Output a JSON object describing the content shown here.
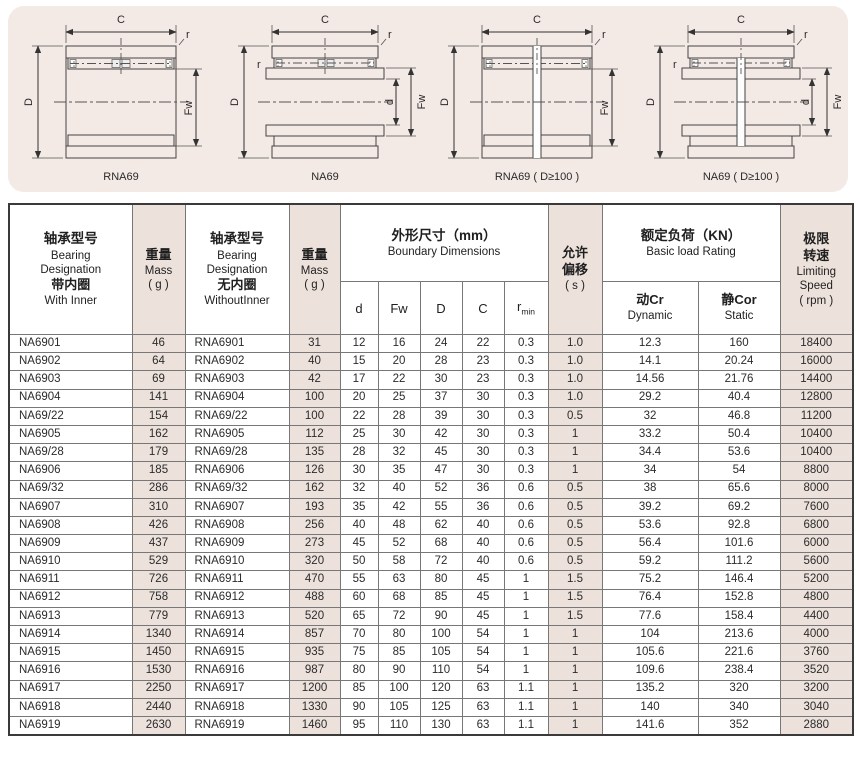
{
  "colors": {
    "panel_bg": "#f3e9e5",
    "column_shade": "#ece1db",
    "grid_line": "#777777",
    "outer_border": "#3a3a3a",
    "text": "#1f1f1f"
  },
  "dims": {
    "c": "C",
    "outer": "D",
    "bore": "d",
    "roller_bore": "Fw",
    "chamfer": "r"
  },
  "diagrams": [
    {
      "caption": "RNA69"
    },
    {
      "caption": "NA69"
    },
    {
      "caption": "RNA69 ( D≥100 )"
    },
    {
      "caption": "NA69 ( D≥100 )"
    }
  ],
  "table": {
    "header": {
      "with_inner": {
        "zh1": "轴承型号",
        "en1": "Bearing",
        "en2": "Designation",
        "zh2": "带内圈",
        "en3": "With Inner"
      },
      "mass1": {
        "zh": "重量",
        "en": "Mass",
        "unit": "( g )"
      },
      "without_inner": {
        "zh1": "轴承型号",
        "en1": "Bearing",
        "en2": "Designation",
        "zh2": "无内圈",
        "en3": "WithoutInner"
      },
      "mass2": {
        "zh": "重量",
        "en": "Mass",
        "unit": "( g )"
      },
      "boundary_group": {
        "zh": "外形尺寸（mm）",
        "en": "Boundary Dimensions"
      },
      "sub_d": "d",
      "sub_fw": "Fw",
      "sub_D": "D",
      "sub_C": "C",
      "sub_r": "r",
      "sub_r_min": "min",
      "offset": {
        "zh1": "允许",
        "zh2": "偏移",
        "unit": "( s )"
      },
      "load_group": {
        "zh": "额定负荷（KN）",
        "en": "Basic load Rating"
      },
      "sub_cr": {
        "zh": "动Cr",
        "en": "Dynamic"
      },
      "sub_cor": {
        "zh": "静Cor",
        "en": "Static"
      },
      "speed": {
        "zh1": "极限",
        "zh2": "转速",
        "en1": "Limiting",
        "en2": "Speed",
        "unit": "( rpm )"
      }
    },
    "columns": [
      "na",
      "mass-na",
      "rna",
      "mass-rna",
      "d",
      "fw",
      "D",
      "C",
      "rmin",
      "s",
      "cr",
      "cor",
      "speed"
    ],
    "shaded_columns": [
      1,
      3,
      9,
      12
    ],
    "rows": [
      [
        "NA6901",
        "46",
        "RNA6901",
        "31",
        "12",
        "16",
        "24",
        "22",
        "0.3",
        "1.0",
        "12.3",
        "160",
        "18400"
      ],
      [
        "NA6902",
        "64",
        "RNA6902",
        "40",
        "15",
        "20",
        "28",
        "23",
        "0.3",
        "1.0",
        "14.1",
        "20.24",
        "16000"
      ],
      [
        "NA6903",
        "69",
        "RNA6903",
        "42",
        "17",
        "22",
        "30",
        "23",
        "0.3",
        "1.0",
        "14.56",
        "21.76",
        "14400"
      ],
      [
        "NA6904",
        "141",
        "RNA6904",
        "100",
        "20",
        "25",
        "37",
        "30",
        "0.3",
        "1.0",
        "29.2",
        "40.4",
        "12800"
      ],
      [
        "NA69/22",
        "154",
        "RNA69/22",
        "100",
        "22",
        "28",
        "39",
        "30",
        "0.3",
        "0.5",
        "32",
        "46.8",
        "11200"
      ],
      [
        "NA6905",
        "162",
        "RNA6905",
        "112",
        "25",
        "30",
        "42",
        "30",
        "0.3",
        "1",
        "33.2",
        "50.4",
        "10400"
      ],
      [
        "NA69/28",
        "179",
        "RNA69/28",
        "135",
        "28",
        "32",
        "45",
        "30",
        "0.3",
        "1",
        "34.4",
        "53.6",
        "10400"
      ],
      [
        "NA6906",
        "185",
        "RNA6906",
        "126",
        "30",
        "35",
        "47",
        "30",
        "0.3",
        "1",
        "34",
        "54",
        "8800"
      ],
      [
        "NA69/32",
        "286",
        "RNA69/32",
        "162",
        "32",
        "40",
        "52",
        "36",
        "0.6",
        "0.5",
        "38",
        "65.6",
        "8000"
      ],
      [
        "NA6907",
        "310",
        "RNA6907",
        "193",
        "35",
        "42",
        "55",
        "36",
        "0.6",
        "0.5",
        "39.2",
        "69.2",
        "7600"
      ],
      [
        "NA6908",
        "426",
        "RNA6908",
        "256",
        "40",
        "48",
        "62",
        "40",
        "0.6",
        "0.5",
        "53.6",
        "92.8",
        "6800"
      ],
      [
        "NA6909",
        "437",
        "RNA6909",
        "273",
        "45",
        "52",
        "68",
        "40",
        "0.6",
        "0.5",
        "56.4",
        "101.6",
        "6000"
      ],
      [
        "NA6910",
        "529",
        "RNA6910",
        "320",
        "50",
        "58",
        "72",
        "40",
        "0.6",
        "0.5",
        "59.2",
        "111.2",
        "5600"
      ],
      [
        "NA6911",
        "726",
        "RNA6911",
        "470",
        "55",
        "63",
        "80",
        "45",
        "1",
        "1.5",
        "75.2",
        "146.4",
        "5200"
      ],
      [
        "NA6912",
        "758",
        "RNA6912",
        "488",
        "60",
        "68",
        "85",
        "45",
        "1",
        "1.5",
        "76.4",
        "152.8",
        "4800"
      ],
      [
        "NA6913",
        "779",
        "RNA6913",
        "520",
        "65",
        "72",
        "90",
        "45",
        "1",
        "1.5",
        "77.6",
        "158.4",
        "4400"
      ],
      [
        "NA6914",
        "1340",
        "RNA6914",
        "857",
        "70",
        "80",
        "100",
        "54",
        "1",
        "1",
        "104",
        "213.6",
        "4000"
      ],
      [
        "NA6915",
        "1450",
        "RNA6915",
        "935",
        "75",
        "85",
        "105",
        "54",
        "1",
        "1",
        "105.6",
        "221.6",
        "3760"
      ],
      [
        "NA6916",
        "1530",
        "RNA6916",
        "987",
        "80",
        "90",
        "110",
        "54",
        "1",
        "1",
        "109.6",
        "238.4",
        "3520"
      ],
      [
        "NA6917",
        "2250",
        "RNA6917",
        "1200",
        "85",
        "100",
        "120",
        "63",
        "1.1",
        "1",
        "135.2",
        "320",
        "3200"
      ],
      [
        "NA6918",
        "2440",
        "RNA6918",
        "1330",
        "90",
        "105",
        "125",
        "63",
        "1.1",
        "1",
        "140",
        "340",
        "3040"
      ],
      [
        "NA6919",
        "2630",
        "RNA6919",
        "1460",
        "95",
        "110",
        "130",
        "63",
        "1.1",
        "1",
        "141.6",
        "352",
        "2880"
      ]
    ]
  }
}
